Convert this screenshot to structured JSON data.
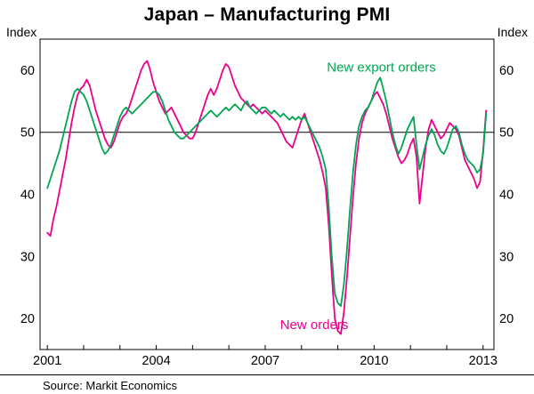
{
  "axes": {
    "left_label": "Index",
    "right_label": "Index"
  },
  "footer": {
    "source": "Source: Markit Economics"
  },
  "chart_data": {
    "type": "line",
    "title": "Japan – Manufacturing PMI",
    "xlabel": "",
    "ylabel": "Index",
    "ylim": [
      15,
      65
    ],
    "yticks": [
      20,
      30,
      40,
      50,
      60
    ],
    "xlim": [
      2000.8,
      2013.3
    ],
    "xticks_labeled": [
      2001,
      2004,
      2007,
      2010,
      2013
    ],
    "xticks_minor": [
      2001,
      2002,
      2003,
      2004,
      2005,
      2006,
      2007,
      2008,
      2009,
      2010,
      2011,
      2012,
      2013
    ],
    "reference_line": 50,
    "grid": "off",
    "frequency": "monthly",
    "x_start": 2001.0,
    "x_step_years": 0.0833333,
    "series": [
      {
        "name": "New orders",
        "color": "#EC008C",
        "values": [
          33.8,
          33.3,
          36.0,
          38.0,
          40.5,
          43.0,
          45.5,
          48.5,
          51.5,
          54.0,
          56.0,
          57.0,
          57.5,
          58.5,
          57.5,
          55.5,
          53.5,
          52.0,
          50.5,
          49.0,
          48.0,
          47.5,
          48.5,
          50.0,
          51.5,
          52.5,
          53.0,
          54.0,
          55.5,
          57.0,
          58.5,
          60.0,
          61.0,
          61.5,
          60.0,
          58.0,
          56.5,
          55.0,
          54.0,
          53.0,
          53.5,
          54.0,
          53.0,
          52.0,
          51.0,
          50.0,
          49.5,
          49.0,
          49.0,
          50.0,
          51.5,
          53.0,
          54.5,
          56.0,
          57.0,
          56.0,
          57.0,
          58.5,
          60.0,
          61.0,
          60.5,
          59.0,
          57.5,
          56.5,
          55.5,
          55.0,
          54.5,
          54.0,
          54.5,
          54.0,
          53.5,
          53.0,
          53.5,
          53.0,
          52.5,
          52.0,
          51.5,
          50.5,
          49.5,
          48.5,
          48.0,
          47.5,
          49.0,
          50.5,
          52.0,
          53.0,
          51.5,
          50.0,
          48.5,
          47.0,
          45.5,
          43.5,
          41.0,
          35.0,
          27.0,
          20.0,
          18.0,
          17.5,
          21.0,
          26.5,
          33.0,
          39.5,
          45.0,
          49.0,
          51.5,
          53.0,
          54.0,
          55.0,
          56.0,
          56.5,
          55.5,
          54.5,
          53.0,
          51.0,
          49.0,
          47.5,
          46.0,
          45.0,
          45.5,
          46.5,
          48.0,
          49.0,
          46.0,
          38.5,
          43.0,
          47.5,
          50.5,
          52.0,
          51.0,
          50.0,
          49.0,
          49.5,
          50.5,
          51.5,
          51.0,
          50.5,
          49.5,
          47.5,
          45.5,
          44.5,
          43.5,
          42.5,
          41.0,
          42.0,
          47.0,
          53.5
        ]
      },
      {
        "name": "New export orders",
        "color": "#00A651",
        "values": [
          41.0,
          42.5,
          44.0,
          45.5,
          47.0,
          49.0,
          51.0,
          53.0,
          55.0,
          56.5,
          57.0,
          56.5,
          56.0,
          55.0,
          53.5,
          52.0,
          50.5,
          49.0,
          47.5,
          46.5,
          47.0,
          48.0,
          49.5,
          51.0,
          52.5,
          53.5,
          54.0,
          53.5,
          53.0,
          53.5,
          54.0,
          54.5,
          55.0,
          55.5,
          56.0,
          56.5,
          56.5,
          56.0,
          55.0,
          53.5,
          52.0,
          51.0,
          50.0,
          49.5,
          49.0,
          49.0,
          49.5,
          50.0,
          50.5,
          51.0,
          51.5,
          52.0,
          52.5,
          53.0,
          53.5,
          53.0,
          52.5,
          53.0,
          53.5,
          54.0,
          53.5,
          54.0,
          54.5,
          54.0,
          53.5,
          54.5,
          55.0,
          54.0,
          53.5,
          53.0,
          53.5,
          54.0,
          54.0,
          53.5,
          53.0,
          53.5,
          53.0,
          52.5,
          53.0,
          52.5,
          52.0,
          52.5,
          52.0,
          52.5,
          52.0,
          52.5,
          51.5,
          50.5,
          49.5,
          48.5,
          47.5,
          46.0,
          44.0,
          38.0,
          30.0,
          24.0,
          22.5,
          22.0,
          25.5,
          31.0,
          37.5,
          43.5,
          48.0,
          51.0,
          52.5,
          53.5,
          54.0,
          55.0,
          56.5,
          58.0,
          58.8,
          57.0,
          55.0,
          52.5,
          50.0,
          48.0,
          46.5,
          47.5,
          49.0,
          50.5,
          51.5,
          52.5,
          48.0,
          44.0,
          46.0,
          48.0,
          49.5,
          50.5,
          49.5,
          48.0,
          47.0,
          46.5,
          47.5,
          49.0,
          50.5,
          51.0,
          50.0,
          48.0,
          46.5,
          45.5,
          45.0,
          44.5,
          43.5,
          44.0,
          46.5,
          53.0
        ]
      }
    ],
    "annotations": [
      {
        "text": "New export orders",
        "x": 2010.2,
        "y": 60.5,
        "color": "#00A651"
      },
      {
        "text": "New orders",
        "x": 2008.35,
        "y": 19.0,
        "color": "#EC008C"
      }
    ],
    "source": "Source: Markit Economics"
  }
}
